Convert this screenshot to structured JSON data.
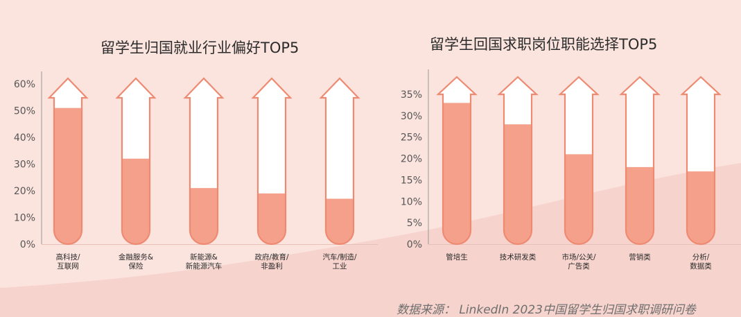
{
  "chart_data": [
    {
      "type": "bar",
      "title": "留学生归国就业行业偏好TOP5",
      "categories": [
        "高科技/互联网",
        "金融服务&保险",
        "新能源&新能源汽车",
        "政府/教育/非盈利",
        "汽车/制造/工业"
      ],
      "category_lines": [
        [
          "高科技/",
          "互联网"
        ],
        [
          "金融服务&",
          "保险"
        ],
        [
          "新能源&",
          "新能源汽车"
        ],
        [
          "政府/教育/",
          "非盈利"
        ],
        [
          "汽车/制造/",
          "工业"
        ]
      ],
      "values": [
        51,
        32,
        21,
        19,
        17
      ],
      "ylim": [
        0,
        60
      ],
      "yticks": [
        "0%",
        "10%",
        "20%",
        "30%",
        "40%",
        "50%",
        "60%"
      ],
      "xlabel": "",
      "ylabel": "",
      "grid": false,
      "legend": "none"
    },
    {
      "type": "bar",
      "title": "留学生回国求职岗位职能选择TOP5",
      "categories": [
        "管培生",
        "技术研发类",
        "市场/公关/广告类",
        "营销类",
        "分析/数据类"
      ],
      "category_lines": [
        [
          "管培生"
        ],
        [
          "技术研发类"
        ],
        [
          "市场/公关/",
          "广告类"
        ],
        [
          "营销类"
        ],
        [
          "分析/",
          "数据类"
        ]
      ],
      "values": [
        33,
        28,
        21,
        18,
        17
      ],
      "ylim": [
        0,
        35
      ],
      "yticks": [
        "0%",
        "5%",
        "10%",
        "15%",
        "20%",
        "25%",
        "30%",
        "35%"
      ],
      "xlabel": "",
      "ylabel": "",
      "grid": false,
      "legend": "none"
    }
  ],
  "footer": {
    "source": "数据来源： LinkedIn 2023中国留学生归国求职调研问卷"
  },
  "colors": {
    "background": "#fbe3de",
    "background_wave": "#f6d3cc",
    "bar_fill": "#f4a08a",
    "arrow_outline": "#ee8a72",
    "arrow_inner": "#ffffff",
    "axis": "#9a9a9a",
    "text": "#2b2b2b",
    "tick_text": "#555555",
    "source_text": "#6f6f6f"
  }
}
